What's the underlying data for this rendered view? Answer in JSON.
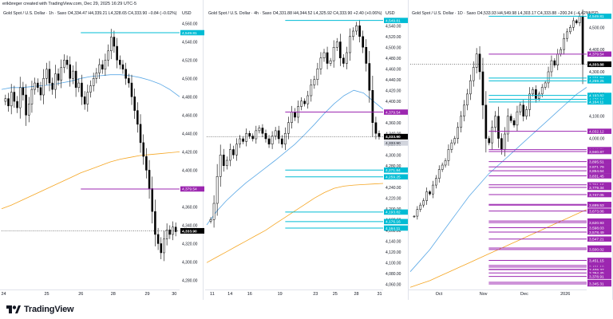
{
  "header": {
    "credit": "erikbreger created with TradingView.com, Dec 29, 2025 16:29 UTC-5"
  },
  "brand": {
    "logo_text": "TradingView"
  },
  "colors": {
    "up": "#ffffff",
    "down": "#000000",
    "wick": "#000000",
    "ma_blue": "#5aa8e6",
    "ma_orange": "#f5a623",
    "cyan": "#00bcd4",
    "magenta": "#9c27b0",
    "price_bg": "#000000"
  },
  "chart_data": [
    {
      "type": "candlestick",
      "title": "Gold Spot / U.S. Dollar · 1h · Saxo",
      "ohlc_text": "O4,334.47  H4,339.21  L4,328.65  C4,333.90  −0.84 (−0.02%)",
      "currency": "USD",
      "ylim": [
        4270,
        4575
      ],
      "y_ticks": [
        "4,560.00",
        "4,540.00",
        "4,520.00",
        "4,500.00",
        "4,480.00",
        "4,460.00",
        "4,440.00",
        "4,420.00",
        "4,400.00",
        "4,380.00",
        "4,360.00",
        "4,340.00",
        "4,320.00",
        "4,300.00",
        "4,280.00"
      ],
      "y_tick_values": [
        4560,
        4540,
        4520,
        4500,
        4480,
        4460,
        4440,
        4420,
        4400,
        4380,
        4360,
        4340,
        4320,
        4300,
        4280
      ],
      "x_ticks": [
        "24",
        "25",
        "26",
        "28",
        "29",
        "30"
      ],
      "x_tick_positions": [
        0.02,
        0.26,
        0.45,
        0.63,
        0.82,
        0.97
      ],
      "levels": [
        {
          "value": 4549.81,
          "label": "4,549.81",
          "color": "cyan"
        },
        {
          "value": 4379.54,
          "label": "4,379.54",
          "color": "magenta"
        }
      ],
      "last_price": {
        "value": 4333.9,
        "label": "4,333.90"
      },
      "close_path": [
        4478,
        4470,
        4485,
        4475,
        4468,
        4490,
        4482,
        4460,
        4472,
        4488,
        4495,
        4490,
        4482,
        4500,
        4510,
        4495,
        4488,
        4505,
        4498,
        4512,
        4520,
        4515,
        4500,
        4508,
        4490,
        4495,
        4480,
        4472,
        4485,
        4492,
        4500,
        4506,
        4515,
        4510,
        4520,
        4530,
        4545,
        4535,
        4520,
        4515,
        4510,
        4500,
        4495,
        4480,
        4465,
        4450,
        4430,
        4415,
        4400,
        4380,
        4355,
        4330,
        4320,
        4310,
        4325,
        4335,
        4330,
        4338,
        4333
      ],
      "series": [
        {
          "name": "MA fast",
          "color": "ma_blue",
          "values": [
            4488,
            4490,
            4490,
            4491,
            4492,
            4493,
            4495,
            4497,
            4500,
            4502,
            4503,
            4504,
            4504,
            4503,
            4501,
            4498,
            4494,
            4488,
            4480
          ]
        },
        {
          "name": "MA slow",
          "color": "ma_orange",
          "values": [
            4358,
            4362,
            4367,
            4372,
            4377,
            4382,
            4387,
            4392,
            4397,
            4401,
            4405,
            4409,
            4412,
            4414,
            4416,
            4417,
            4418,
            4419,
            4420
          ]
        }
      ]
    },
    {
      "type": "candlestick",
      "title": "Gold Spot / U.S. Dollar · 4h · Saxo",
      "ohlc_text": "O4,331.88  H4,344.52  L4,325.92  C4,333.90  +2.40 (+0.06%)",
      "currency": "USD",
      "ylim": [
        4050,
        4570
      ],
      "y_ticks": [
        "4,560.00",
        "4,540.00",
        "4,520.00",
        "4,500.00",
        "4,480.00",
        "4,460.00",
        "4,440.00",
        "4,420.00",
        "4,400.00",
        "4,380.00",
        "4,360.00",
        "4,340.00",
        "4,320.00",
        "4,300.00",
        "4,280.00",
        "4,260.00",
        "4,240.00",
        "4,220.00",
        "4,200.00",
        "4,180.00",
        "4,160.00",
        "4,140.00",
        "4,120.00",
        "4,100.00",
        "4,080.00",
        "4,060.00"
      ],
      "y_tick_values": [
        4560,
        4540,
        4520,
        4500,
        4480,
        4460,
        4440,
        4420,
        4400,
        4380,
        4360,
        4340,
        4320,
        4300,
        4280,
        4260,
        4240,
        4220,
        4200,
        4180,
        4160,
        4140,
        4120,
        4100,
        4080,
        4060
      ],
      "x_ticks": [
        "11",
        "14",
        "16",
        "19",
        "23",
        "25",
        "28",
        "31"
      ],
      "x_tick_positions": [
        0.04,
        0.14,
        0.25,
        0.42,
        0.62,
        0.73,
        0.85,
        0.98
      ],
      "levels": [
        {
          "value": 4549.81,
          "label": "4,549.81",
          "color": "cyan"
        },
        {
          "value": 4379.54,
          "label": "4,379.54",
          "color": "magenta"
        },
        {
          "value": 4271.84,
          "label": "4,271.84",
          "color": "cyan"
        },
        {
          "value": 4259.25,
          "label": "4,259.25",
          "color": "cyan"
        },
        {
          "value": 4193.82,
          "label": "4,193.82",
          "color": "cyan"
        },
        {
          "value": 4176.16,
          "label": "4,176.16",
          "color": "cyan"
        },
        {
          "value": 4164.11,
          "label": "4,164.11",
          "color": "cyan"
        }
      ],
      "extra_labels": [
        {
          "value": 4333.9,
          "label": "4,333.90"
        }
      ],
      "last_price": {
        "value": 4333.9,
        "label": "4,333.90"
      },
      "close_path": [
        4180,
        4210,
        4260,
        4300,
        4280,
        4290,
        4310,
        4300,
        4320,
        4330,
        4325,
        4340,
        4335,
        4330,
        4345,
        4350,
        4340,
        4330,
        4320,
        4335,
        4345,
        4330,
        4320,
        4340,
        4360,
        4380,
        4370,
        4390,
        4400,
        4395,
        4410,
        4430,
        4440,
        4460,
        4480,
        4490,
        4470,
        4475,
        4500,
        4510,
        4480,
        4470,
        4490,
        4520,
        4530,
        4540,
        4520,
        4500,
        4470,
        4420,
        4360,
        4340,
        4334
      ],
      "series": [
        {
          "name": "MA fast",
          "color": "ma_blue",
          "values": [
            4170,
            4195,
            4215,
            4232,
            4248,
            4262,
            4276,
            4290,
            4305,
            4320,
            4338,
            4357,
            4377,
            4395,
            4410,
            4420,
            4415,
            4400,
            4385
          ]
        },
        {
          "name": "MA slow",
          "color": "ma_orange",
          "values": [
            4100,
            4110,
            4120,
            4130,
            4140,
            4150,
            4160,
            4172,
            4184,
            4196,
            4208,
            4220,
            4230,
            4238,
            4242,
            4244,
            4245,
            4246,
            4247
          ]
        }
      ]
    },
    {
      "type": "candlestick",
      "title": "Gold Spot / U.S. Dollar · 1D · Saxo",
      "ohlc_text": "O4,533.93  H4,549.98  L4,303.17  C4,333.88  −200.24 (−4.42%)",
      "currency": "USD",
      "ylim": [
        3320,
        4580
      ],
      "y_ticks": [
        "4,600.00",
        "4,500.00",
        "4,400.00",
        "4,300.00",
        "4,200.00",
        "4,100.00",
        "4,000.00",
        "3,900.00"
      ],
      "y_tick_values": [
        4600,
        4500,
        4400,
        4300,
        4200,
        4100,
        4000,
        3900
      ],
      "x_ticks": [
        "Oct",
        "Nov",
        "Dec",
        "2026"
      ],
      "x_tick_positions": [
        0.17,
        0.42,
        0.65,
        0.88
      ],
      "levels": [
        {
          "value": 4549.81,
          "label": "4,549.81",
          "color": "cyan"
        },
        {
          "value": 4379.54,
          "label": "4,379.54",
          "color": "magenta"
        },
        {
          "value": 4271.84,
          "label": "4,271.84",
          "color": "cyan"
        },
        {
          "value": 4259.25,
          "label": "4,259.25",
          "color": "cyan"
        },
        {
          "value": 4193.82,
          "label": "4,193.82",
          "color": "cyan"
        },
        {
          "value": 4176.16,
          "label": "4,176.16",
          "color": "cyan"
        },
        {
          "value": 4164.11,
          "label": "4,164.11",
          "color": "cyan"
        },
        {
          "value": 4032.12,
          "label": "4,032.12",
          "color": "magenta"
        },
        {
          "value": 3949.71,
          "label": "3,949.71",
          "color": "magenta"
        },
        {
          "value": 3940.87,
          "label": "3,940.87",
          "color": "magenta"
        },
        {
          "value": 3895.51,
          "label": "3,895.51",
          "color": "magenta"
        },
        {
          "value": 3871.79,
          "label": "3,871.79",
          "color": "magenta"
        },
        {
          "value": 3854.64,
          "label": "3,854.64",
          "color": "magenta"
        },
        {
          "value": 3831.45,
          "label": "3,831.45",
          "color": "magenta"
        },
        {
          "value": 3791.16,
          "label": "3,791.16",
          "color": "magenta"
        },
        {
          "value": 3779.34,
          "label": "3,779.34",
          "color": "magenta"
        },
        {
          "value": 3747.05,
          "label": "3,747.05",
          "color": "magenta"
        },
        {
          "value": 3703.02,
          "label": "3,703.02",
          "color": "magenta"
        },
        {
          "value": 3699.53,
          "label": "3,699.53",
          "color": "magenta"
        },
        {
          "value": 3673.06,
          "label": "3,673.06",
          "color": "magenta"
        },
        {
          "value": 3628.11,
          "label": "3,628.11",
          "color": "magenta"
        },
        {
          "value": 3620.93,
          "label": "3,620.93",
          "color": "magenta"
        },
        {
          "value": 3598.03,
          "label": "3,598.03",
          "color": "magenta"
        },
        {
          "value": 3578.49,
          "label": "3,578.49",
          "color": "magenta"
        },
        {
          "value": 3547.21,
          "label": "3,547.21",
          "color": "magenta"
        },
        {
          "value": 3506.7,
          "label": "3,506.70",
          "color": "magenta"
        },
        {
          "value": 3500.02,
          "label": "3,500.02",
          "color": "magenta"
        },
        {
          "value": 3451.15,
          "label": "3,451.15",
          "color": "magenta"
        },
        {
          "value": 3428.33,
          "label": "3,428.33",
          "color": "magenta"
        },
        {
          "value": 3421.1,
          "label": "3,421.10",
          "color": "magenta"
        },
        {
          "value": 3410.5,
          "label": "3,410.50",
          "color": "magenta"
        },
        {
          "value": 3409.37,
          "label": "3,409.37",
          "color": "magenta"
        },
        {
          "value": 3394.45,
          "label": "3,394.45",
          "color": "magenta"
        },
        {
          "value": 3378.91,
          "label": "3,378.91",
          "color": "magenta"
        },
        {
          "value": 3352.18,
          "label": "3,352.18",
          "color": "magenta"
        },
        {
          "value": 3345.31,
          "label": "3,345.31",
          "color": "magenta"
        }
      ],
      "last_price": {
        "value": 4333.88,
        "label": "4,333.88"
      },
      "close_path": [
        3650,
        3680,
        3700,
        3720,
        3760,
        3750,
        3790,
        3820,
        3860,
        3880,
        3900,
        3950,
        3980,
        4000,
        4050,
        4100,
        4150,
        4200,
        4260,
        4320,
        4380,
        4300,
        4150,
        4000,
        3980,
        4050,
        4100,
        4000,
        3950,
        4020,
        4100,
        4080,
        4060,
        4120,
        4150,
        4100,
        4130,
        4200,
        4220,
        4180,
        4200,
        4230,
        4250,
        4300,
        4350,
        4330,
        4380,
        4400,
        4450,
        4480,
        4500,
        4530,
        4520,
        4549,
        4334
      ],
      "series": [
        {
          "name": "MA fast",
          "color": "ma_blue",
          "values": [
            3400,
            3450,
            3500,
            3560,
            3620,
            3680,
            3740,
            3790,
            3840,
            3880,
            3920,
            3960,
            4000,
            4040,
            4080,
            4120,
            4160,
            4200,
            4230
          ]
        },
        {
          "name": "MA slow",
          "color": "ma_orange",
          "values": [
            3330,
            3345,
            3360,
            3380,
            3400,
            3420,
            3440,
            3460,
            3480,
            3500,
            3520,
            3540,
            3560,
            3580,
            3600,
            3620,
            3640,
            3660,
            3680
          ]
        }
      ]
    }
  ]
}
